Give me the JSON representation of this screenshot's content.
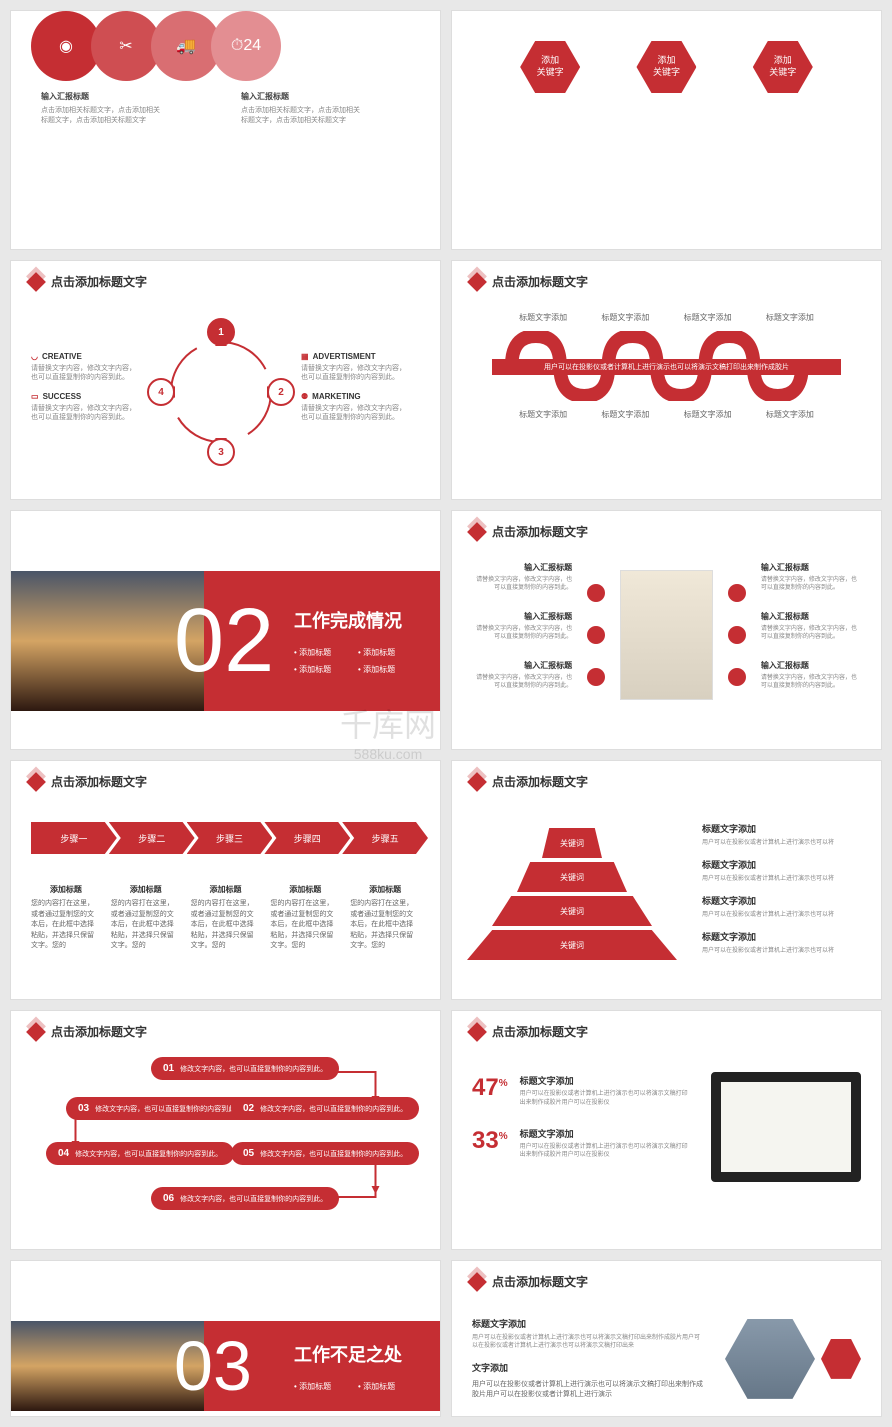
{
  "colors": {
    "primary": "#c52e33",
    "primary2": "#cf4e52",
    "primary3": "#d96e72",
    "primary4": "#e38e92",
    "bg": "#ffffff",
    "text": "#333333",
    "muted": "#888888"
  },
  "common": {
    "title": "点击添加标题文字",
    "add_title": "添加标题",
    "input_title": "输入汇报标题",
    "desc_short": "请替换文字内容，修改文字内容，也可以直接复制你的内容到此。",
    "keyword": "关键词",
    "add_keyword": "添加\n关键字",
    "title_add": "标题文字添加",
    "sub_desc": "用户可以在投影仪或者计算机上进行演示也可以将演示文稿打印出来制作成胶片"
  },
  "s1": {
    "labels": [
      {
        "t": "输入汇报标题",
        "d": "点击添加相关标题文字，点击添加相关标题文字，点击添加相关标题文字"
      },
      {
        "t": "输入汇报标题",
        "d": "点击添加相关标题文字，点击添加相关标题文字，点击添加相关标题文字"
      }
    ]
  },
  "s3": {
    "left": [
      {
        "t": "CREATIVE",
        "d": "请替换文字内容，修改文字内容，也可以直接复制你的内容到此。"
      },
      {
        "t": "SUCCESS",
        "d": "请替换文字内容，修改文字内容，也可以直接复制你的内容到此。"
      }
    ],
    "right": [
      {
        "t": "ADVERTISMENT",
        "d": "请替换文字内容，修改文字内容，也可以直接复制你的内容到此。"
      },
      {
        "t": "MARKETING",
        "d": "请替换文字内容，修改文字内容，也可以直接复制你的内容到此。"
      }
    ],
    "nodes": [
      "1",
      "2",
      "3",
      "4"
    ]
  },
  "s4": {
    "band": "用户可以在投影仪或者计算机上进行演示也可以将演示文稿打印出来制作成胶片"
  },
  "s5": {
    "num": "02",
    "title": "工作完成情况",
    "bullets": [
      "添加标题",
      "添加标题",
      "添加标题",
      "添加标题"
    ]
  },
  "s7": {
    "steps": [
      "步骤一",
      "步骤二",
      "步骤三",
      "步骤四",
      "步骤五"
    ],
    "col_t": "添加标题",
    "col_d": "您的内容打在这里，或者通过复制您的文本后，在此框中选择粘贴，并选择只保留文字。您的"
  },
  "s8": {
    "levels": [
      "关键词",
      "关键词",
      "关键词",
      "关键词"
    ],
    "items": [
      {
        "t": "标题文字添加",
        "d": "用户可以在投影仪或者计算机上进行演示也可以将"
      },
      {
        "t": "标题文字添加",
        "d": "用户可以在投影仪或者计算机上进行演示也可以将"
      },
      {
        "t": "标题文字添加",
        "d": "用户可以在投影仪或者计算机上进行演示也可以将"
      },
      {
        "t": "标题文字添加",
        "d": "用户可以在投影仪或者计算机上进行演示也可以将"
      }
    ]
  },
  "s9": {
    "boxes": [
      {
        "n": "01",
        "t": "修改文字内容，也可以直接复制你的内容到此。"
      },
      {
        "n": "02",
        "t": "修改文字内容，也可以直接复制你的内容到此。"
      },
      {
        "n": "03",
        "t": "修改文字内容，也可以直接复制你的内容到此。"
      },
      {
        "n": "04",
        "t": "修改文字内容，也可以直接复制你的内容到此。"
      },
      {
        "n": "05",
        "t": "修改文字内容，也可以直接复制你的内容到此。"
      },
      {
        "n": "06",
        "t": "修改文字内容，也可以直接复制你的内容到此。"
      }
    ]
  },
  "s10": {
    "stats": [
      {
        "pct": "47",
        "t": "标题文字添加",
        "d": "用户可以在投影仪或者计算机上进行演示也可以将演示文稿打印出来制作成胶片用户可以在投影仪"
      },
      {
        "pct": "33",
        "t": "标题文字添加",
        "d": "用户可以在投影仪或者计算机上进行演示也可以将演示文稿打印出来制作成胶片用户可以在投影仪"
      }
    ]
  },
  "s11": {
    "num": "03",
    "title": "工作不足之处",
    "bullets": [
      "添加标题",
      "添加标题",
      "添加标题",
      "添加标题"
    ]
  },
  "s12": {
    "left_t": "文字添加",
    "left_d": "用户可以在投影仪或者计算机上进行演示也可以将演示文稿打印出来制作成胶片用户可以在投影仪或者计算机上进行演示",
    "right_t": "标题文字添加",
    "right_d": "用户可以在投影仪或者计算机上进行演示也可以将演示文稿打印出来制作成胶片用户可以在投影仪或者计算机上进行演示也可以将演示文稿打印出来"
  },
  "watermark": {
    "main": "千库网",
    "sub": "588ku.com"
  }
}
